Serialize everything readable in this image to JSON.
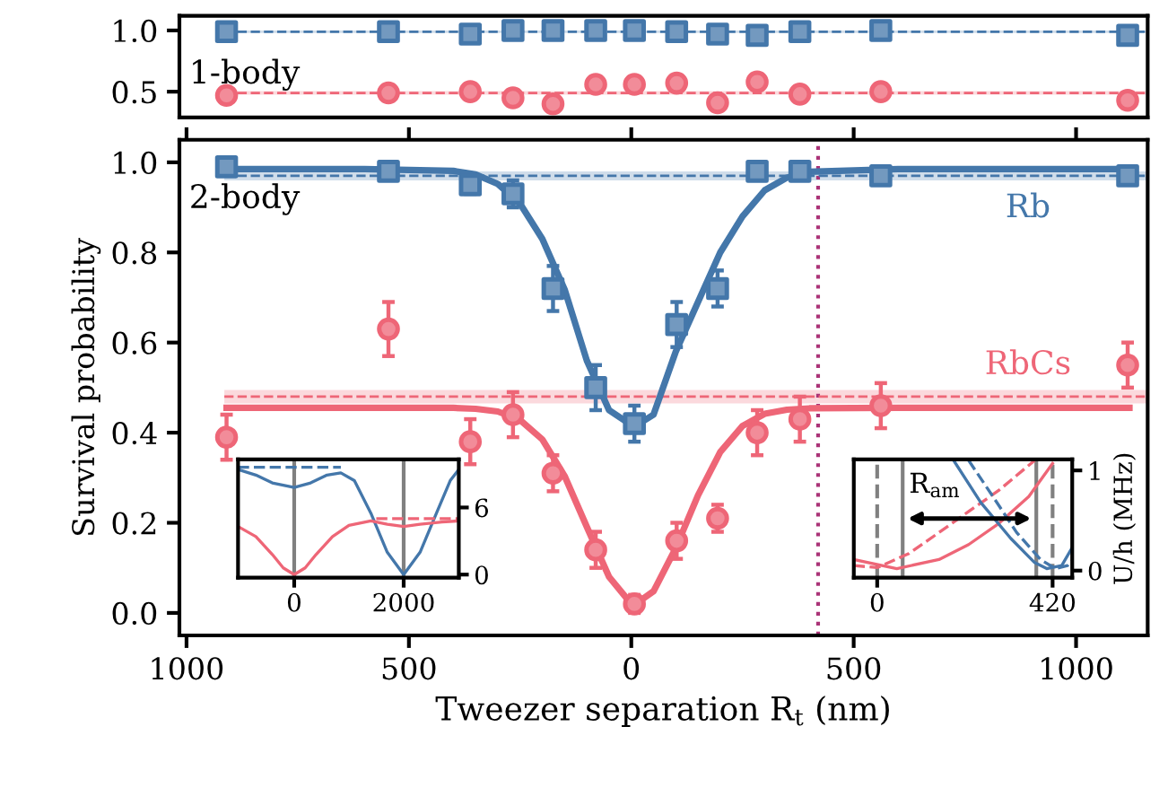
{
  "chart_data": [
    {
      "type": "scatter",
      "xlim": [
        -1016,
        1161
      ],
      "ylim": [
        0.29,
        1.12
      ],
      "yticks": [
        {
          "value": 0.5,
          "label": "0.5"
        },
        {
          "value": 1.0,
          "label": "1.0"
        }
      ],
      "tick_labels": "y",
      "annotations": [
        "1-body"
      ],
      "series": [
        {
          "type": "line",
          "color": "#4477aa",
          "line_style": "dashed",
          "x": [
            -915,
            1161
          ],
          "values": [
            0.99,
            0.99
          ],
          "lower": [
            0.98,
            0.98
          ],
          "upper": [
            1.0,
            1.0
          ]
        },
        {
          "type": "line",
          "color": "#ee6677",
          "line_style": "dashed",
          "x": [
            -915,
            1161
          ],
          "values": [
            0.49,
            0.49
          ],
          "lower": [
            0.475,
            0.475
          ],
          "upper": [
            0.505,
            0.505
          ]
        },
        {
          "type": "scatter",
          "marker": "square",
          "color": "#4477aa",
          "x": [
            -910,
            -546,
            -362,
            -266,
            -176,
            -80,
            7,
            102,
            194,
            283,
            379,
            561,
            1116
          ],
          "values": [
            0.99,
            0.99,
            0.97,
            1.0,
            1.0,
            1.0,
            1.0,
            0.99,
            0.97,
            0.96,
            0.99,
            1.0,
            0.96
          ]
        },
        {
          "type": "scatter",
          "marker": "circle",
          "color": "#ee6677",
          "x": [
            -910,
            -546,
            -362,
            -266,
            -176,
            -80,
            7,
            102,
            194,
            283,
            379,
            561,
            1116
          ],
          "values": [
            0.47,
            0.49,
            0.5,
            0.45,
            0.4,
            0.56,
            0.56,
            0.57,
            0.41,
            0.58,
            0.48,
            0.5,
            0.43
          ],
          "errors": [
            0.04,
            0.04,
            0.05,
            0.04,
            0.03,
            0.04,
            0.05,
            0.06,
            0.04,
            0.04,
            0.04,
            0.05,
            0.04
          ]
        }
      ]
    },
    {
      "type": "scatter",
      "xlabel": "Tweezer separation R$_{t}$ (nm)",
      "ylabel": "Survival probability",
      "xlim": [
        -1016,
        1161
      ],
      "xticks": [
        {
          "value": -1000,
          "label": "1000"
        },
        {
          "value": -500,
          "label": "500"
        },
        0,
        500,
        1000
      ],
      "ylim": [
        -0.05,
        1.05
      ],
      "yticks": [
        {
          "value": 0.0,
          "label": "0.0"
        },
        0.2,
        0.4,
        0.6,
        0.8,
        {
          "value": 1.0,
          "label": "1.0"
        }
      ],
      "annotations": [
        "2-body"
      ],
      "ref_lines": [
        {
          "axis": "x",
          "value": 420,
          "color": "#aa3377",
          "line_style": "dotted"
        }
      ],
      "series": [
        {
          "type": "line",
          "color": "#4477aa",
          "line_style": "dashed",
          "x": [
            -915,
            1161
          ],
          "values": [
            0.97,
            0.97
          ],
          "lower": [
            0.96,
            0.96
          ],
          "upper": [
            0.98,
            0.98
          ]
        },
        {
          "type": "line",
          "color": "#ee6677",
          "line_style": "dashed",
          "x": [
            -915,
            1161
          ],
          "values": [
            0.48,
            0.48
          ],
          "lower": [
            0.465,
            0.465
          ],
          "upper": [
            0.495,
            0.495
          ]
        },
        {
          "type": "line",
          "color": "#4477aa",
          "line_style": "solid",
          "x": [
            -910,
            -600,
            -400,
            -350,
            -300,
            -250,
            -200,
            -150,
            -100,
            -50,
            0,
            10,
            50,
            100,
            150,
            200,
            250,
            300,
            350,
            400,
            600,
            1120
          ],
          "values": [
            0.985,
            0.985,
            0.981,
            0.973,
            0.952,
            0.908,
            0.83,
            0.718,
            0.56,
            0.45,
            0.417,
            0.415,
            0.44,
            0.58,
            0.69,
            0.8,
            0.88,
            0.938,
            0.966,
            0.979,
            0.985,
            0.985
          ]
        },
        {
          "type": "line",
          "color": "#ee6677",
          "line_style": "solid",
          "x": [
            -910,
            -600,
            -400,
            -350,
            -300,
            -250,
            -200,
            -150,
            -100,
            -50,
            0,
            10,
            50,
            100,
            150,
            200,
            250,
            300,
            350,
            400,
            600,
            1120
          ],
          "values": [
            0.455,
            0.455,
            0.455,
            0.453,
            0.447,
            0.428,
            0.385,
            0.304,
            0.191,
            0.08,
            0.02,
            0.02,
            0.048,
            0.144,
            0.261,
            0.357,
            0.415,
            0.442,
            0.451,
            0.454,
            0.455,
            0.455
          ]
        },
        {
          "type": "scatter",
          "name": "Rb",
          "marker": "square",
          "color": "#4477aa",
          "x": [
            -910,
            -546,
            -362,
            -266,
            -176,
            -80,
            7,
            102,
            194,
            283,
            379,
            561,
            1116
          ],
          "values": [
            0.99,
            0.98,
            0.95,
            0.93,
            0.72,
            0.5,
            0.42,
            0.64,
            0.72,
            0.98,
            0.98,
            0.97,
            0.97
          ],
          "errors": [
            null,
            null,
            0.02,
            0.03,
            0.05,
            0.05,
            0.04,
            0.05,
            0.04,
            null,
            null,
            null,
            null
          ]
        },
        {
          "type": "scatter",
          "name": "RbCs",
          "marker": "circle",
          "color": "#ee6677",
          "x": [
            -910,
            -546,
            -362,
            -266,
            -176,
            -80,
            7,
            102,
            194,
            283,
            379,
            561,
            1116
          ],
          "values": [
            0.39,
            0.63,
            0.38,
            0.44,
            0.31,
            0.14,
            0.02,
            0.16,
            0.21,
            0.4,
            0.43,
            0.46,
            0.55
          ],
          "errors": [
            0.05,
            0.06,
            0.05,
            0.05,
            0.04,
            0.04,
            0.02,
            0.04,
            0.03,
            0.05,
            0.05,
            0.05,
            0.05
          ]
        }
      ]
    },
    {
      "type": "line",
      "xlim": [
        -1026,
        3007
      ],
      "xticks": [
        0,
        2000
      ],
      "ylim": [
        -0.27,
        10.3
      ],
      "yticks": [
        0,
        6
      ],
      "ref_lines": [
        {
          "axis": "x",
          "value": 0,
          "color": "#808080",
          "line_style": "solid"
        },
        {
          "axis": "x",
          "value": 2000,
          "color": "#808080",
          "line_style": "solid"
        }
      ],
      "series": [
        {
          "color": "#4477aa",
          "line_style": "solid",
          "x": [
            -1026,
            -700,
            -400,
            0,
            300,
            600,
            852,
            1100,
            1400,
            1700,
            2000,
            2300,
            2600,
            2850,
            3007
          ],
          "values": [
            9.4,
            8.9,
            8.2,
            7.8,
            8.2,
            8.9,
            9.1,
            8.4,
            5.5,
            2.0,
            0.0,
            2.0,
            5.5,
            8.4,
            9.4
          ]
        },
        {
          "color": "#4477aa",
          "line_style": "dashed",
          "x": [
            -1026,
            852
          ],
          "values": [
            9.6,
            9.6
          ]
        },
        {
          "color": "#ee6677",
          "line_style": "solid",
          "x": [
            -1026,
            -700,
            -400,
            -200,
            0,
            200,
            400,
            700,
            1000,
            1400,
            1700,
            2000,
            2300,
            2700,
            3007
          ],
          "values": [
            4.3,
            3.4,
            1.8,
            0.6,
            0.0,
            0.6,
            1.8,
            3.4,
            4.4,
            4.8,
            4.5,
            4.3,
            4.5,
            4.7,
            4.8
          ]
        },
        {
          "color": "#ee6677",
          "line_style": "dashed",
          "x": [
            1500,
            3007
          ],
          "values": [
            5.0,
            5.0
          ]
        }
      ]
    },
    {
      "type": "line",
      "ylabel": "U/h (MHz)",
      "xlim": [
        -56,
        467
      ],
      "xticks": [
        0,
        420
      ],
      "ylim": [
        -0.07,
        1.11
      ],
      "yticks": [
        0,
        1
      ],
      "annotations": [
        {
          "text": "R$_{am}$",
          "x": 221,
          "y": 0.52
        }
      ],
      "ref_lines": [
        {
          "axis": "x",
          "value": 0,
          "color": "#808080",
          "line_style": "dashed"
        },
        {
          "axis": "x",
          "value": 420,
          "color": "#808080",
          "line_style": "dashed"
        },
        {
          "axis": "x",
          "value": 61,
          "color": "#808080",
          "line_style": "solid"
        },
        {
          "axis": "x",
          "value": 381,
          "color": "#808080",
          "line_style": "solid"
        }
      ],
      "series": [
        {
          "color": "#ee6677",
          "line_style": "solid",
          "x": [
            -56,
            47,
            148,
            219,
            291,
            363,
            420
          ],
          "values": [
            0.11,
            0.02,
            0.11,
            0.26,
            0.47,
            0.74,
            1.07
          ]
        },
        {
          "color": "#ee6677",
          "line_style": "dashed",
          "x": [
            -56,
            0,
            76,
            148,
            219,
            291,
            377
          ],
          "values": [
            0.05,
            0.03,
            0.17,
            0.38,
            0.59,
            0.8,
            1.1
          ]
        },
        {
          "color": "#4477aa",
          "line_style": "solid",
          "x": [
            183,
            248,
            320,
            377,
            406,
            442,
            467
          ],
          "values": [
            1.1,
            0.68,
            0.32,
            0.08,
            0.02,
            0.05,
            0.23
          ]
        },
        {
          "color": "#4477aa",
          "line_style": "dashed",
          "x": [
            219,
            277,
            334,
            391,
            427,
            456,
            467
          ],
          "values": [
            1.1,
            0.74,
            0.38,
            0.11,
            0.02,
            0.05,
            0.1
          ]
        }
      ]
    }
  ]
}
